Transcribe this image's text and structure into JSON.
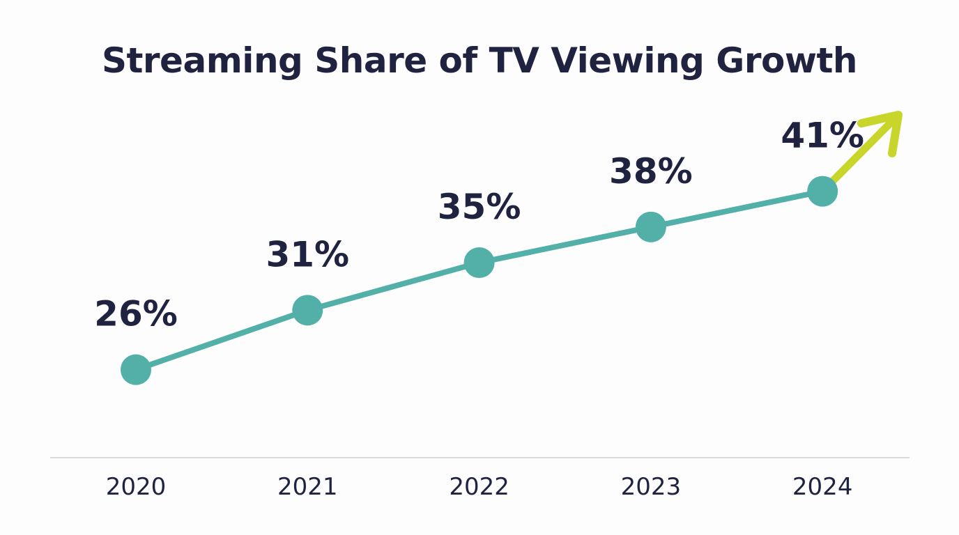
{
  "chart_data": {
    "type": "line",
    "title": "Streaming Share of TV Viewing Growth",
    "categories": [
      "2020",
      "2021",
      "2022",
      "2023",
      "2024"
    ],
    "values": [
      26,
      31,
      35,
      38,
      41
    ],
    "data_labels": [
      "26%",
      "31%",
      "35%",
      "38%",
      "41%"
    ],
    "xlabel": "",
    "ylabel": "",
    "ylim": [
      18.6,
      48.3
    ],
    "grid": false,
    "trend_arrow": true,
    "colors": {
      "line": "#52b0a8",
      "arrow": "#c8d62b",
      "text": "#1f2340",
      "axis": "#cfcfcf"
    }
  }
}
